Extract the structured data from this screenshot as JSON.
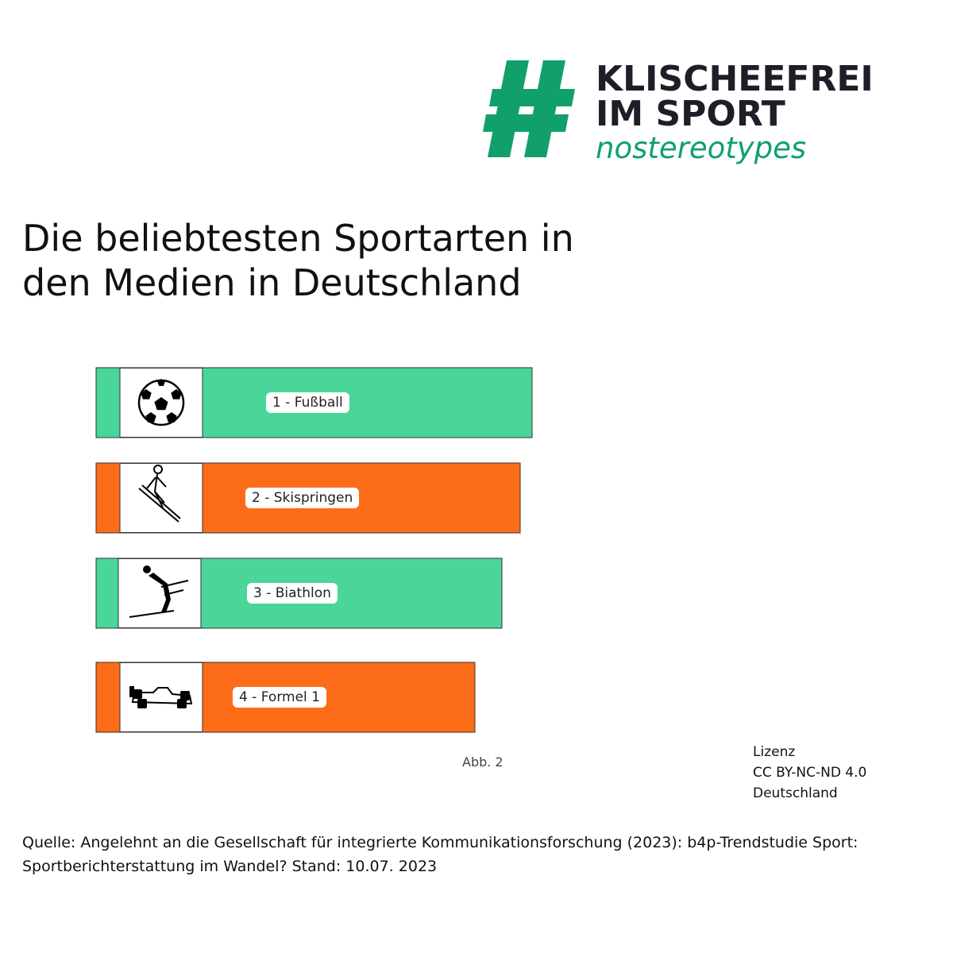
{
  "logo": {
    "line1": "KLISCHEEFREI",
    "line2": "IM SPORT",
    "line3": "nostereotypes",
    "mark": "hashtag-icon",
    "color_green": "#11a06a",
    "color_dark": "#1e1e28"
  },
  "title": {
    "line1": "Die beliebtesten Sportarten in",
    "line2": "den Medien in Deutschland"
  },
  "chart_data": {
    "type": "bar",
    "orientation": "horizontal",
    "categories": [
      "1 - Fußball",
      "2 - Skispringen",
      "3 - Biathlon",
      "4 - Formel 1"
    ],
    "rank": [
      1,
      2,
      3,
      4
    ],
    "icons": [
      "soccer-ball-icon",
      "ski-jumper-icon",
      "biathlete-icon",
      "formula-one-car-icon"
    ],
    "colors": [
      "#4ad699",
      "#fd6d19",
      "#4ad699",
      "#fd6d19"
    ],
    "grid": false,
    "legend": "none"
  },
  "figure_label": "Abb. 2",
  "license": {
    "line1": "Lizenz",
    "line2": "CC BY-NC-ND 4.0",
    "line3": "Deutschland"
  },
  "source": "Quelle: Angelehnt an die Gesellschaft für integrierte Kommunikationsforschung (2023): b4p-Trendstudie Sport: Sportberichterstattung im Wandel? Stand: 10.07. 2023"
}
